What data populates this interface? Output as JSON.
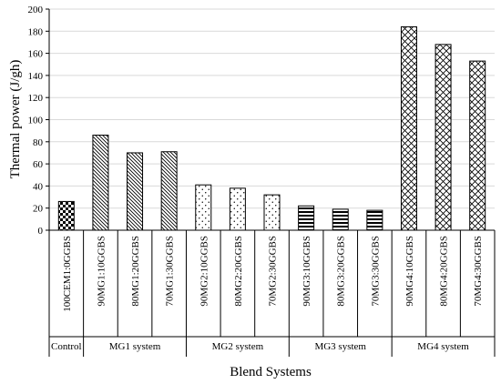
{
  "chart_data": {
    "type": "bar",
    "title": "",
    "ylabel": "Thermal power (J/gh)",
    "xlabel": "Blend Systems",
    "ylim": [
      0,
      200
    ],
    "yticks": [
      0,
      20,
      40,
      60,
      80,
      100,
      120,
      140,
      160,
      180,
      200
    ],
    "grid": true,
    "legend": "none",
    "categories": [
      "100CEM1:0GGBS",
      "90MG1:10GGBS",
      "80MG1:20GGBS",
      "70MG1:30GGBS",
      "90MG2:10GGBS",
      "80MG2:20GGBS",
      "70MG2:30GGBS",
      "90MG3:10GGBS",
      "80MG3:20GGBS",
      "70MG3:30GGBS",
      "90MG4:10GGBS",
      "80MG4:20GGBS",
      "70MG4:30GGBS"
    ],
    "values": [
      26,
      86,
      70,
      71,
      41,
      38,
      32,
      22,
      19,
      18,
      184,
      168,
      153
    ],
    "groups": [
      {
        "label": "Control",
        "count": 1,
        "pattern": "checker"
      },
      {
        "label": "MG1 system",
        "count": 3,
        "pattern": "diag"
      },
      {
        "label": "MG2 system",
        "count": 3,
        "pattern": "dots"
      },
      {
        "label": "MG3 system",
        "count": 3,
        "pattern": "hlines"
      },
      {
        "label": "MG4 system",
        "count": 3,
        "pattern": "lattice"
      }
    ]
  }
}
